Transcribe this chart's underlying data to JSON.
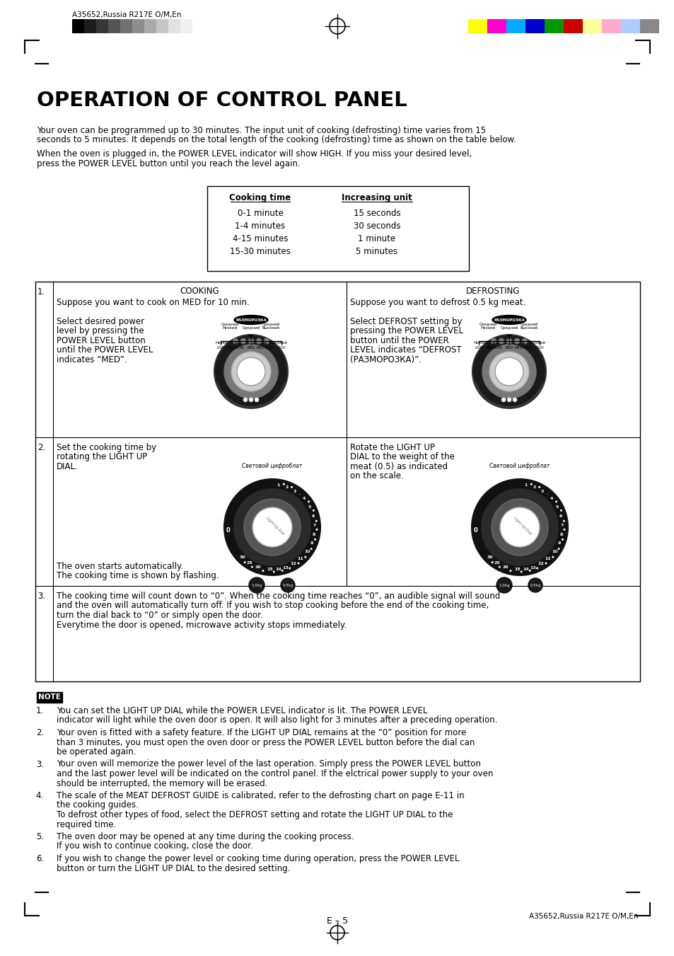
{
  "header_text": "A35652,Russia R217E O/M,En",
  "title": "OPERATION OF CONTROL PANEL",
  "para1_line1": "Your oven can be programmed up to 30 minutes. The input unit of cooking (defrosting) time varies from 15",
  "para1_line2": "seconds to 5 minutes. It depends on the total length of the cooking (defrosting) time as shown on the table below.",
  "para2_line1": "When the oven is plugged in, the POWER LEVEL indicator will show HIGH. If you miss your desired level,",
  "para2_line2": "press the POWER LEVEL button until you reach the level again.",
  "table_header_col1": "Cooking time",
  "table_header_col2": "Increasing unit",
  "table_rows": [
    [
      "0-1 minute",
      "15 seconds"
    ],
    [
      "1-4 minutes",
      "30 seconds"
    ],
    [
      "4-15 minutes",
      "1 minute"
    ],
    [
      "15-30 minutes",
      "5 minutes"
    ]
  ],
  "row1_col1_header": "COOKING",
  "row1_col2_header": "DEFROSTING",
  "row1_col1_sub": "Suppose you want to cook on MED for 10 min.",
  "row1_col2_sub": "Suppose you want to defrost 0.5 kg meat.",
  "row1_col1_text": [
    "Select desired power",
    "level by pressing the",
    "POWER LEVEL button",
    "until the POWER LEVEL",
    "indicates “MED”."
  ],
  "row1_col2_text": [
    "Select DEFROST setting by",
    "pressing the POWER LEVEL",
    "button until the POWER",
    "LEVEL indicates “DEFROST",
    "(РАЗМОРОЗКА)”."
  ],
  "row2_col1_text": [
    "Set the cooking time by",
    "rotating the LIGHT UP",
    "DIAL."
  ],
  "row2_col2_text": [
    "Rotate the LIGHT UP",
    "DIAL to the weight of the",
    "meat (0.5) as indicated",
    "on the scale."
  ],
  "row2_col1_bottom": [
    "The oven starts automatically.",
    "The cooking time is shown by flashing."
  ],
  "row3_text": [
    "The cooking time will count down to “0”. When the cooking time reaches “0”, an audible signal will sound",
    "and the oven will automatically turn off. If you wish to stop cooking before the end of the cooking time,",
    "turn the dial back to “0” or simply open the door.",
    "Everytime the door is opened, microwave activity stops immediately."
  ],
  "note_label": "NOTE",
  "notes": [
    [
      "You can set the LIGHT UP DIAL while the POWER LEVEL indicator is lit. The POWER LEVEL",
      "indicator will light while the oven door is open. It will also light for 3 minutes after a preceding operation."
    ],
    [
      "Your oven is fitted with a safety feature. If the LIGHT UP DIAL remains at the “0” position for more",
      "than 3 minutes, you must open the oven door or press the POWER LEVEL button before the dial can",
      "be operated again."
    ],
    [
      "Your oven will memorize the power level of the last operation. Simply press the POWER LEVEL button",
      "and the last power level will be indicated on the control panel. If the elctrical power supply to your oven",
      "should be interrupted, the memory will be erased."
    ],
    [
      "The scale of the MEAT DEFROST GUIDE is calibrated, refer to the defrosting chart on page E-11 in",
      "the cooking guides.",
      "To defrost other types of food, select the DEFROST setting and rotate the LIGHT UP DIAL to the",
      "required time."
    ],
    [
      "The oven door may be opened at any time during the cooking process.",
      "If you wish to continue cooking, close the door."
    ],
    [
      "If you wish to change the power level or cooking time during operation, press the POWER LEVEL",
      "button or turn the LIGHT UP DIAL to the desired setting."
    ]
  ],
  "footer_text": "E – 5",
  "footer_right": "A35652,Russia R217E O/M,En",
  "gray_colors": [
    "#000000",
    "#1c1c1c",
    "#383838",
    "#555555",
    "#717171",
    "#8d8d8d",
    "#aaaaaa",
    "#c6c6c6",
    "#e2e2e2",
    "#efefef",
    "#ffffff"
  ],
  "color_bars": [
    "#ffff00",
    "#ff00cc",
    "#00aaff",
    "#0000cc",
    "#009900",
    "#cc0000",
    "#ffff99",
    "#ffaacc",
    "#aaccff",
    "#888888"
  ]
}
